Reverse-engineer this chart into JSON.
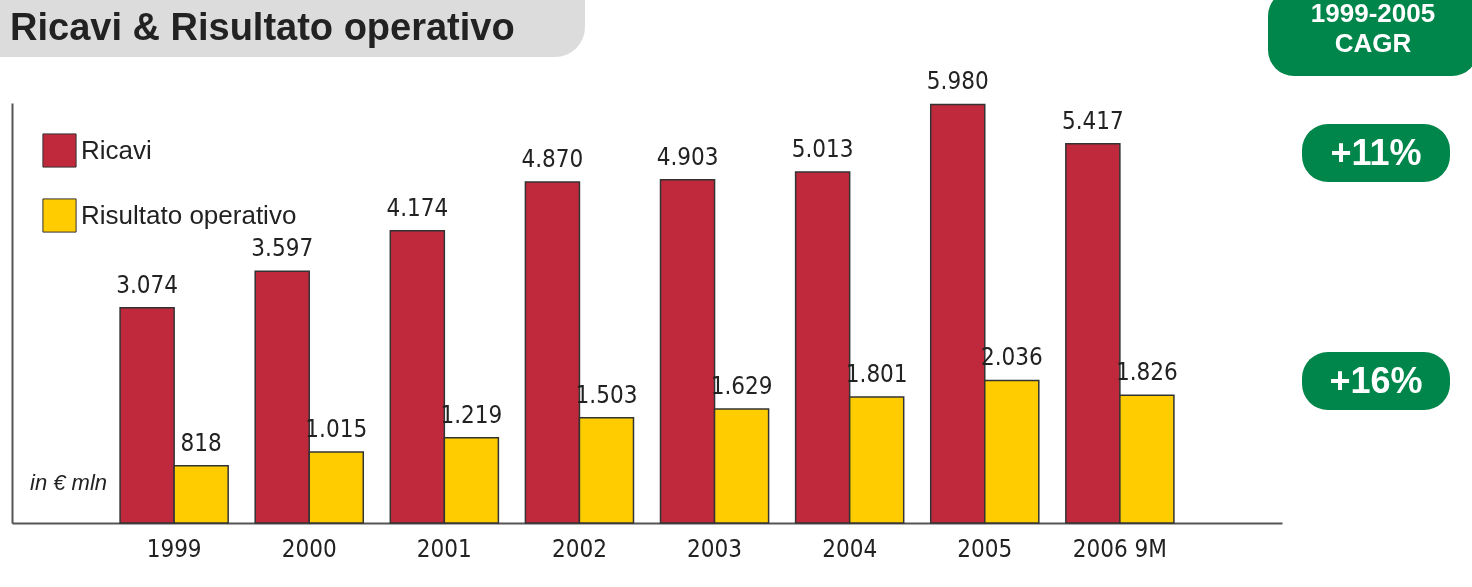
{
  "chart_data": {
    "type": "bar",
    "title": "Ricavi & Risultato operativo",
    "categories": [
      "1999",
      "2000",
      "2001",
      "2002",
      "2003",
      "2004",
      "2005",
      "2006 9M"
    ],
    "series": [
      {
        "name": "Ricavi",
        "color": "#c0293b",
        "values": [
          3074,
          3597,
          4174,
          4870,
          4903,
          5013,
          5980,
          5417
        ],
        "value_labels": [
          "3.074",
          "3.597",
          "4.174",
          "4.870",
          "4.903",
          "5.013",
          "5.980",
          "5.417"
        ]
      },
      {
        "name": "Risultato operativo",
        "color": "#ffcc00",
        "values": [
          818,
          1015,
          1219,
          1503,
          1629,
          1801,
          2036,
          1826
        ],
        "value_labels": [
          "818",
          "1.015",
          "1.219",
          "1.503",
          "1.629",
          "1.801",
          "2.036",
          "1.826"
        ]
      }
    ],
    "annotations": [
      "1999-2005 CAGR",
      "+11%",
      "+16%",
      "in € mln"
    ],
    "legend": "top left",
    "tick_labels": "x",
    "grid": false
  }
}
